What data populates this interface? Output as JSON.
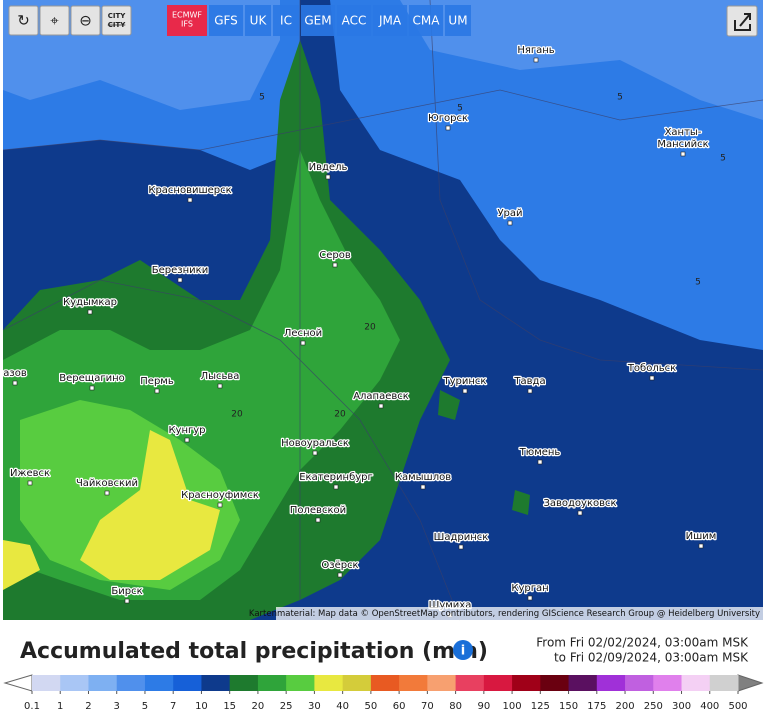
{
  "toolbar": {
    "city_button": [
      "CITY",
      "CITY"
    ],
    "models": [
      "ECMWF IFS",
      "GFS",
      "UK",
      "IC",
      "GEM",
      "ACC",
      "JMA",
      "CMA",
      "UM"
    ]
  },
  "map": {
    "cities": [
      "Нягань",
      "Югорск",
      "Ханты-",
      "Мансийск",
      "Ивдель",
      "Красновишерск",
      "Урай",
      "Серов",
      "Березники",
      "Кудымкар",
      "Лесной",
      "Тобольск",
      "Туринск",
      "Тавда",
      "Верещагино",
      "Пермь",
      "Лысьва",
      "азов",
      "Алапаевск",
      "Кунгур",
      "Новоуральск",
      "Тюмень",
      "Ижевск",
      "Екатеринбург",
      "Камышлов",
      "Чайковский",
      "Красноуфимск",
      "Заводоуковск",
      "Полевской",
      "Шадринск",
      "Ишим",
      "Озёрск",
      "Курган",
      "Бирск",
      "Шумиха"
    ],
    "contour_labels": [
      5,
      5,
      5,
      5,
      5,
      20,
      20,
      20
    ],
    "attribution": "Kartenmaterial: Map data © OpenStreetMap contributors, rendering GIScience Research Group @ Heidelberg University"
  },
  "title": "Accumulated total precipitation (mm)",
  "date_range": {
    "from": "From Fri 02/02/2024, 03:00am MSK",
    "to": "to Fri 02/09/2024, 03:00am MSK"
  },
  "legend": {
    "labels": [
      0.1,
      1,
      2,
      3,
      5,
      7,
      10,
      15,
      20,
      25,
      30,
      40,
      50,
      60,
      70,
      80,
      90,
      100,
      125,
      150,
      175,
      200,
      250,
      300,
      400,
      500
    ],
    "colors": [
      "#d2d8f2",
      "#a9c6f5",
      "#7eb0f2",
      "#5090ec",
      "#2d7be6",
      "#1660d8",
      "#0e3a8c",
      "#1e7a2e",
      "#2fa43a",
      "#58cc40",
      "#e8e840",
      "#d4cc3a",
      "#e85a22",
      "#f27a3a",
      "#f7a070",
      "#e84060",
      "#d81840",
      "#a00018",
      "#6a0010",
      "#5a1060",
      "#a030d8",
      "#c060e0",
      "#e080ec",
      "#f4d0f4",
      "#d0d0d0"
    ]
  }
}
